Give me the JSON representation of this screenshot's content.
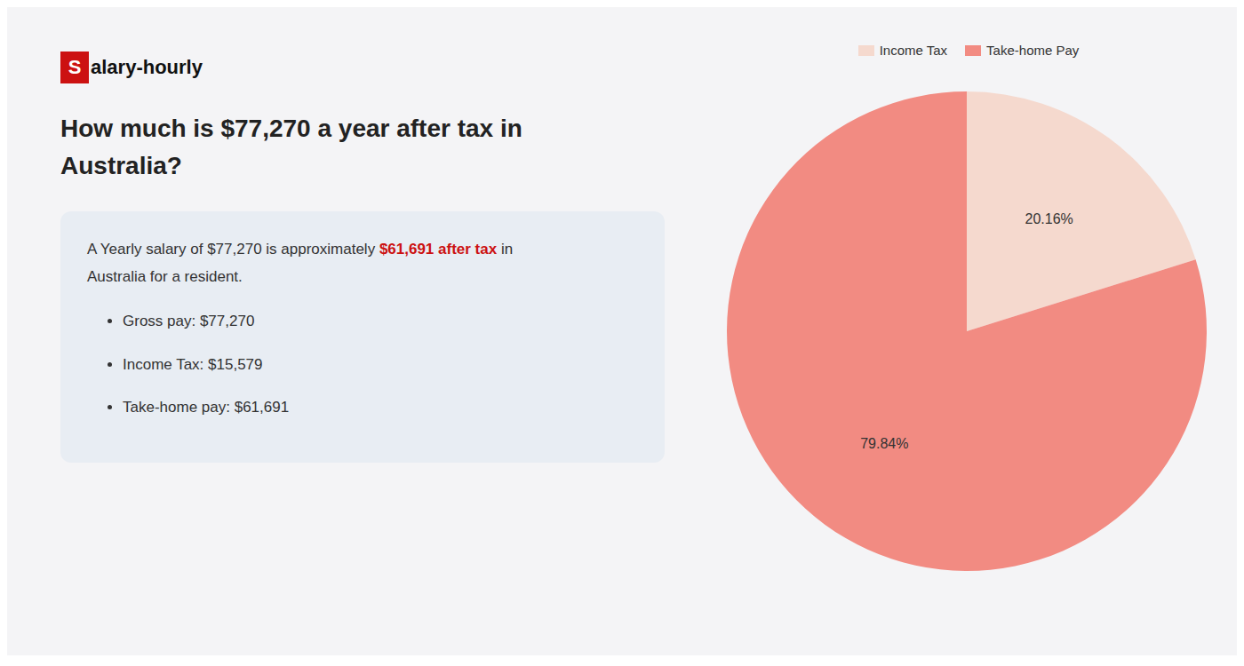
{
  "chart_data": {
    "type": "pie",
    "title": "How much is $77,270 a year after tax in\nAustralia?",
    "categories": [
      "Income Tax",
      "Take-home Pay"
    ],
    "values": [
      20.16,
      79.84
    ],
    "value_labels": [
      "20.16%",
      "79.84%"
    ],
    "colors": [
      "#f5d9ce",
      "#f28b82"
    ],
    "data_labels": true,
    "legend": "top",
    "annotations": [
      "S",
      "alary-hourly",
      "A Yearly salary of $77,270 is approximately ",
      "$61,691 after tax",
      " in",
      "Australia for a resident.",
      "Gross pay: $77,270",
      "Income Tax: $15,579",
      "Take-home pay: $61,691"
    ]
  }
}
